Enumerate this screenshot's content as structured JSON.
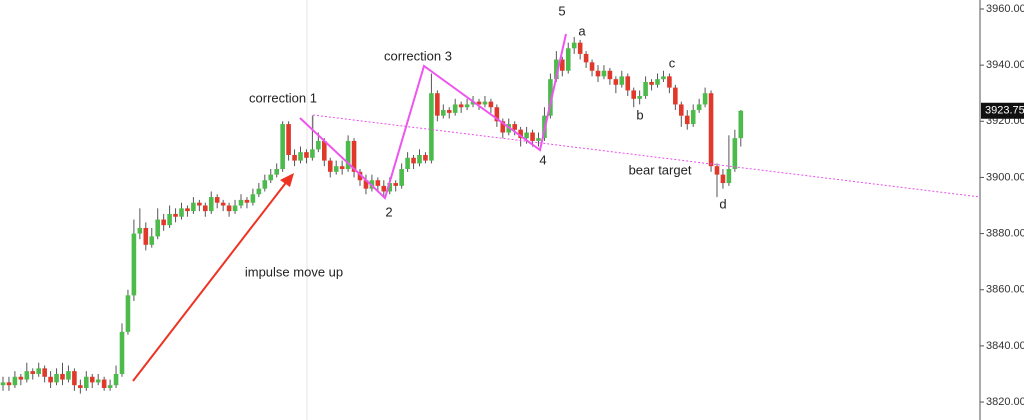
{
  "chart_data": {
    "type": "candlestick",
    "up_color": "#4cbb4c",
    "down_color": "#e0392b",
    "ylim": [
      3813.6,
      3963.2
    ],
    "yticks": [
      {
        "value": 3820,
        "label": "3820.00"
      },
      {
        "value": 3840,
        "label": "3840.00"
      },
      {
        "value": 3860,
        "label": "3860.00"
      },
      {
        "value": 3880,
        "label": "3880.00"
      },
      {
        "value": 3900,
        "label": "3900.00"
      },
      {
        "value": 3920,
        "label": "3920.00"
      },
      {
        "value": 3940,
        "label": "3940.00"
      },
      {
        "value": 3960,
        "label": "3960.00"
      }
    ],
    "open": [
      3826,
      3827,
      3826,
      3829,
      3828,
      3831,
      3830,
      3832,
      3829,
      3827,
      3830,
      3828,
      3831,
      3826,
      3825,
      3829,
      3827,
      3828,
      3825,
      3826,
      3830,
      3845,
      3858,
      3880,
      3882,
      3876,
      3879,
      3885,
      3883,
      3887,
      3886,
      3889,
      3888,
      3891,
      3890,
      3888,
      3893,
      3891,
      3890,
      3888,
      3890,
      3892,
      3891,
      3894,
      3896,
      3899,
      3901,
      3903,
      3919,
      3908,
      3906,
      3909,
      3907,
      3910,
      3913,
      3906,
      3902,
      3904,
      3903,
      3913,
      3902,
      3899,
      3896,
      3899,
      3897,
      3895,
      3898,
      3897,
      3903,
      3907,
      3905,
      3908,
      3906,
      3930,
      3922,
      3924,
      3923,
      3926,
      3925,
      3926,
      3927,
      3926,
      3927,
      3925,
      3920,
      3916,
      3919,
      3917,
      3914,
      3916,
      3913,
      3914,
      3922,
      3935,
      3942,
      3938,
      3946,
      3948,
      3944,
      3941,
      3938,
      3936,
      3938,
      3935,
      3933,
      3936,
      3931,
      3928,
      3929,
      3934,
      3933,
      3935,
      3936,
      3932,
      3926,
      3922,
      3919,
      3924,
      3926,
      3930,
      3904,
      3901,
      3898,
      3903,
      3914
    ],
    "high": [
      3829,
      3829,
      3831,
      3830,
      3834,
      3832,
      3834,
      3833,
      3831,
      3832,
      3834,
      3833,
      3832,
      3828,
      3831,
      3830,
      3830,
      3829,
      3828,
      3833,
      3848,
      3860,
      3885,
      3889,
      3884,
      3882,
      3889,
      3887,
      3890,
      3889,
      3891,
      3890,
      3893,
      3892,
      3891,
      3895,
      3894,
      3892,
      3891,
      3892,
      3894,
      3893,
      3896,
      3898,
      3901,
      3903,
      3905,
      3920,
      3920,
      3910,
      3911,
      3910,
      3922,
      3916,
      3914,
      3907,
      3906,
      3906,
      3915,
      3914,
      3903,
      3901,
      3901,
      3900,
      3899,
      3900,
      3899,
      3905,
      3909,
      3908,
      3910,
      3909,
      3937,
      3931,
      3926,
      3925,
      3928,
      3927,
      3928,
      3929,
      3928,
      3929,
      3928,
      3926,
      3921,
      3921,
      3920,
      3918,
      3918,
      3917,
      3916,
      3925,
      3937,
      3945,
      3943,
      3948,
      3950,
      3949,
      3945,
      3942,
      3940,
      3940,
      3939,
      3936,
      3938,
      3937,
      3932,
      3931,
      3936,
      3935,
      3937,
      3938,
      3937,
      3933,
      3927,
      3924,
      3926,
      3928,
      3932,
      3931,
      3905,
      3903,
      3915,
      3917,
      3924
    ],
    "low": [
      3824,
      3824,
      3825,
      3826,
      3827,
      3828,
      3829,
      3827,
      3825,
      3826,
      3826,
      3827,
      3824,
      3823,
      3824,
      3825,
      3826,
      3824,
      3824,
      3825,
      3829,
      3844,
      3856,
      3878,
      3874,
      3875,
      3878,
      3881,
      3882,
      3884,
      3885,
      3886,
      3887,
      3888,
      3886,
      3887,
      3889,
      3888,
      3886,
      3887,
      3889,
      3889,
      3890,
      3893,
      3895,
      3898,
      3900,
      3902,
      3906,
      3904,
      3905,
      3905,
      3906,
      3909,
      3904,
      3900,
      3901,
      3901,
      3902,
      3900,
      3897,
      3894,
      3895,
      3895,
      3893,
      3894,
      3895,
      3896,
      3902,
      3903,
      3904,
      3905,
      3905,
      3920,
      3921,
      3921,
      3922,
      3923,
      3924,
      3925,
      3924,
      3925,
      3923,
      3918,
      3914,
      3915,
      3915,
      3911,
      3912,
      3911,
      3911,
      3913,
      3921,
      3934,
      3936,
      3937,
      3944,
      3942,
      3939,
      3936,
      3934,
      3935,
      3933,
      3930,
      3932,
      3929,
      3925,
      3926,
      3928,
      3931,
      3932,
      3934,
      3930,
      3924,
      3918,
      3917,
      3918,
      3923,
      3925,
      3902,
      3893,
      3896,
      3897,
      3902,
      3911
    ],
    "close": [
      3827,
      3826,
      3829,
      3828,
      3831,
      3830,
      3832,
      3829,
      3827,
      3830,
      3828,
      3831,
      3826,
      3825,
      3829,
      3827,
      3828,
      3825,
      3826,
      3830,
      3845,
      3858,
      3880,
      3882,
      3876,
      3879,
      3885,
      3883,
      3887,
      3886,
      3889,
      3888,
      3891,
      3890,
      3888,
      3893,
      3891,
      3890,
      3888,
      3890,
      3892,
      3891,
      3894,
      3896,
      3899,
      3901,
      3903,
      3919,
      3908,
      3906,
      3909,
      3907,
      3910,
      3913,
      3906,
      3902,
      3904,
      3903,
      3913,
      3902,
      3899,
      3896,
      3899,
      3897,
      3895,
      3898,
      3897,
      3903,
      3907,
      3905,
      3908,
      3906,
      3930,
      3922,
      3924,
      3923,
      3926,
      3925,
      3926,
      3927,
      3926,
      3927,
      3925,
      3920,
      3916,
      3919,
      3917,
      3914,
      3916,
      3913,
      3914,
      3922,
      3935,
      3942,
      3938,
      3946,
      3948,
      3944,
      3941,
      3938,
      3936,
      3938,
      3935,
      3933,
      3936,
      3931,
      3928,
      3929,
      3934,
      3933,
      3935,
      3936,
      3932,
      3926,
      3922,
      3919,
      3924,
      3926,
      3930,
      3904,
      3901,
      3898,
      3903,
      3914,
      3923.75
    ],
    "annotations": [
      "correction 1",
      "correction 3",
      "5",
      "a",
      "c",
      "b",
      "4",
      "2",
      "bear target",
      "d",
      "impulse move up"
    ]
  }
}
